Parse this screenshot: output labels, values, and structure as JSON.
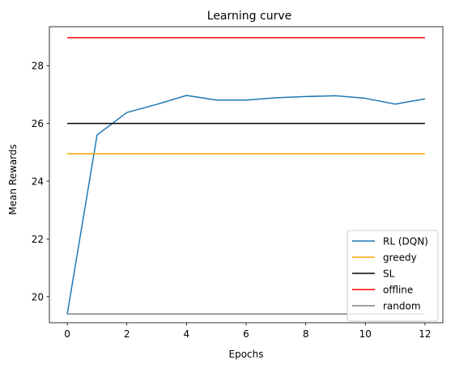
{
  "chart_data": {
    "type": "line",
    "title": "Learning curve",
    "xlabel": "Epochs",
    "ylabel": "Mean Rewards",
    "xlim": [
      -0.6,
      12.6
    ],
    "ylim": [
      19.1,
      29.35
    ],
    "xticks": [
      0,
      2,
      4,
      6,
      8,
      10,
      12
    ],
    "yticks": [
      20,
      22,
      24,
      26,
      28
    ],
    "grid": false,
    "legend_position": "lower right",
    "x": [
      0,
      1,
      2,
      3,
      4,
      5,
      6,
      7,
      8,
      9,
      10,
      11,
      12
    ],
    "series": [
      {
        "name": "RL (DQN)",
        "color": "#1f77b4",
        "values": [
          19.4,
          25.6,
          26.38,
          26.66,
          26.97,
          26.81,
          26.81,
          26.89,
          26.93,
          26.96,
          26.87,
          26.67,
          26.85
        ]
      },
      {
        "name": "greedy",
        "color": "#ffa500",
        "values": [
          24.95,
          24.95,
          24.95,
          24.95,
          24.95,
          24.95,
          24.95,
          24.95,
          24.95,
          24.95,
          24.95,
          24.95,
          24.95
        ]
      },
      {
        "name": "SL",
        "color": "#000000",
        "values": [
          26.0,
          26.0,
          26.0,
          26.0,
          26.0,
          26.0,
          26.0,
          26.0,
          26.0,
          26.0,
          26.0,
          26.0,
          26.0
        ]
      },
      {
        "name": "offline",
        "color": "#ff0000",
        "values": [
          28.97,
          28.97,
          28.97,
          28.97,
          28.97,
          28.97,
          28.97,
          28.97,
          28.97,
          28.97,
          28.97,
          28.97,
          28.97
        ]
      },
      {
        "name": "random",
        "color": "#808080",
        "values": [
          19.4,
          19.4,
          19.4,
          19.4,
          19.4,
          19.4,
          19.4,
          19.4,
          19.4,
          19.4,
          19.4,
          19.4,
          19.4
        ]
      }
    ]
  }
}
